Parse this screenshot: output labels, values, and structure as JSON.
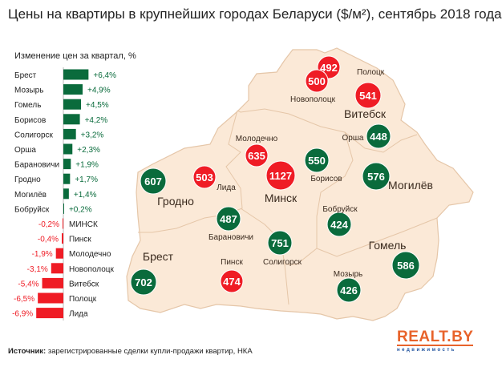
{
  "title": "Цены на квартиры в крупнейших городах Беларуси ($/м²), сентябрь 2018 года",
  "source": {
    "label": "Источник:",
    "text": " зарегистрированные сделки купли-продажи квартир, НКА"
  },
  "logo": {
    "main": "REALT.BY",
    "sub": "недвижимость"
  },
  "colors": {
    "up": "#0a6b3c",
    "down": "#ef1c25",
    "map_fill": "#fbe9d7",
    "map_stroke": "#e5c6a8",
    "logo": "#e8632b"
  },
  "chart_data": {
    "type": "bar",
    "title": "Изменение цен за квартал, %",
    "orientation": "horizontal",
    "categories": [
      "Брест",
      "Мозырь",
      "Гомель",
      "Борисов",
      "Солигорск",
      "Орша",
      "Барановичи",
      "Гродно",
      "Могилёв",
      "Бобруйск",
      "МИНСК",
      "Пинск",
      "Молодечно",
      "Новополоцк",
      "Витебск",
      "Полоцк",
      "Лида"
    ],
    "values": [
      6.4,
      4.9,
      4.5,
      4.2,
      3.2,
      2.3,
      1.9,
      1.7,
      1.4,
      0.2,
      -0.2,
      -0.4,
      -1.9,
      -3.1,
      -5.4,
      -6.5,
      -6.9
    ],
    "labels": [
      "+6,4%",
      "+4,9%",
      "+4,5%",
      "+4,2%",
      "+3,2%",
      "+2,3%",
      "+1,9%",
      "+1,7%",
      "+1,4%",
      "+0,2%",
      "-0,2%",
      "-0,4%",
      "-1,9%",
      "-3,1%",
      "-5,4%",
      "-6,5%",
      "-6,9%"
    ]
  },
  "map": {
    "cities": [
      {
        "name": "Полоцк",
        "price": "492",
        "trend": "down",
        "major": false
      },
      {
        "name": "Новополоцк",
        "price": "500",
        "trend": "down",
        "major": false
      },
      {
        "name": "Витебск",
        "price": "541",
        "trend": "down",
        "major": true
      },
      {
        "name": "Орша",
        "price": "448",
        "trend": "up",
        "major": false
      },
      {
        "name": "Молодечно",
        "price": "635",
        "trend": "down",
        "major": false
      },
      {
        "name": "Минск",
        "price": "1127",
        "trend": "down",
        "major": true
      },
      {
        "name": "Борисов",
        "price": "550",
        "trend": "up",
        "major": false
      },
      {
        "name": "Могилёв",
        "price": "576",
        "trend": "up",
        "major": true
      },
      {
        "name": "Гродно",
        "price": "607",
        "trend": "up",
        "major": true
      },
      {
        "name": "Лида",
        "price": "503",
        "trend": "down",
        "major": false
      },
      {
        "name": "Барановичи",
        "price": "487",
        "trend": "up",
        "major": false
      },
      {
        "name": "Солигорск",
        "price": "751",
        "trend": "up",
        "major": false
      },
      {
        "name": "Бобруйск",
        "price": "424",
        "trend": "up",
        "major": false
      },
      {
        "name": "Гомель",
        "price": "586",
        "trend": "up",
        "major": true
      },
      {
        "name": "Мозырь",
        "price": "426",
        "trend": "up",
        "major": false
      },
      {
        "name": "Пинск",
        "price": "474",
        "trend": "down",
        "major": false
      },
      {
        "name": "Брест",
        "price": "702",
        "trend": "up",
        "major": true
      }
    ]
  }
}
